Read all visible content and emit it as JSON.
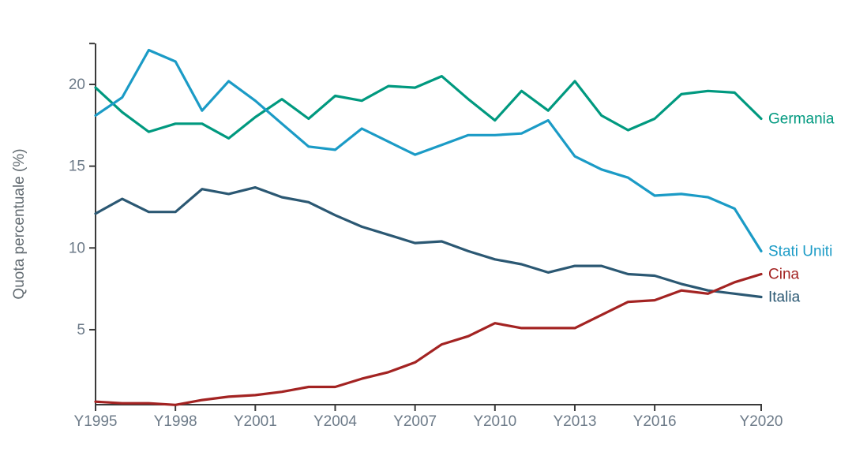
{
  "chart_data": {
    "type": "line",
    "ylabel": "Quota percentuale (%)",
    "x_field": "year",
    "years": [
      1995,
      1996,
      1997,
      1998,
      1999,
      2000,
      2001,
      2002,
      2003,
      2004,
      2005,
      2006,
      2007,
      2008,
      2009,
      2010,
      2011,
      2012,
      2013,
      2014,
      2015,
      2016,
      2017,
      2018,
      2019,
      2020
    ],
    "x_ticks": [
      1995,
      1998,
      2001,
      2004,
      2007,
      2010,
      2013,
      2016,
      2020
    ],
    "x_tick_labels": [
      "Y1995",
      "Y1998",
      "Y2001",
      "Y2004",
      "Y2007",
      "Y2010",
      "Y2013",
      "Y2016",
      "Y2020"
    ],
    "y_ticks": [
      5,
      10,
      15,
      20
    ],
    "y_tick_labels": [
      "5",
      "10",
      "15",
      "20"
    ],
    "y_axis_top_value": 22.5,
    "xlim": [
      1995,
      2020
    ],
    "ylim": [
      0.4,
      22.5
    ],
    "grid": false,
    "legend_position": "labels-at-line-ends",
    "series": [
      {
        "name": "Germania",
        "color": "#00997f",
        "values": [
          19.8,
          18.3,
          17.1,
          17.6,
          17.6,
          16.7,
          18.0,
          19.1,
          17.9,
          19.3,
          19.0,
          19.9,
          19.8,
          20.5,
          19.1,
          17.8,
          19.6,
          18.4,
          20.2,
          18.1,
          17.2,
          17.9,
          19.4,
          19.6,
          19.5,
          17.9
        ]
      },
      {
        "name": "Italia",
        "color": "#2b5873",
        "values": [
          12.1,
          13.0,
          12.2,
          12.2,
          13.6,
          13.3,
          13.7,
          13.1,
          12.8,
          12.0,
          11.3,
          10.8,
          10.3,
          10.4,
          9.8,
          9.3,
          9.0,
          8.5,
          8.9,
          8.9,
          8.4,
          8.3,
          7.8,
          7.4,
          7.2,
          7.0
        ]
      },
      {
        "name": "Cina",
        "color": "#a32322",
        "values": [
          0.6,
          0.5,
          0.5,
          0.4,
          0.7,
          0.9,
          1.0,
          1.2,
          1.5,
          1.5,
          2.0,
          2.4,
          3.0,
          4.1,
          4.6,
          5.4,
          5.1,
          5.1,
          5.1,
          5.9,
          6.7,
          6.8,
          7.4,
          7.2,
          7.9,
          8.4
        ]
      },
      {
        "name": "Stati Uniti",
        "color": "#1b9bc6",
        "values": [
          18.1,
          19.2,
          22.1,
          21.4,
          18.4,
          20.2,
          19.0,
          17.6,
          16.2,
          16.0,
          17.3,
          16.5,
          15.7,
          16.3,
          16.9,
          16.9,
          17.0,
          17.8,
          15.6,
          14.8,
          14.3,
          13.2,
          13.3,
          13.1,
          12.4,
          9.8
        ]
      }
    ]
  },
  "colors": {
    "background": "#ffffff",
    "axis_line": "#3a3a3a",
    "tick_mark": "#3a3a3a",
    "tick_text": "#6c7a88",
    "ylabel_text": "#616a70"
  }
}
